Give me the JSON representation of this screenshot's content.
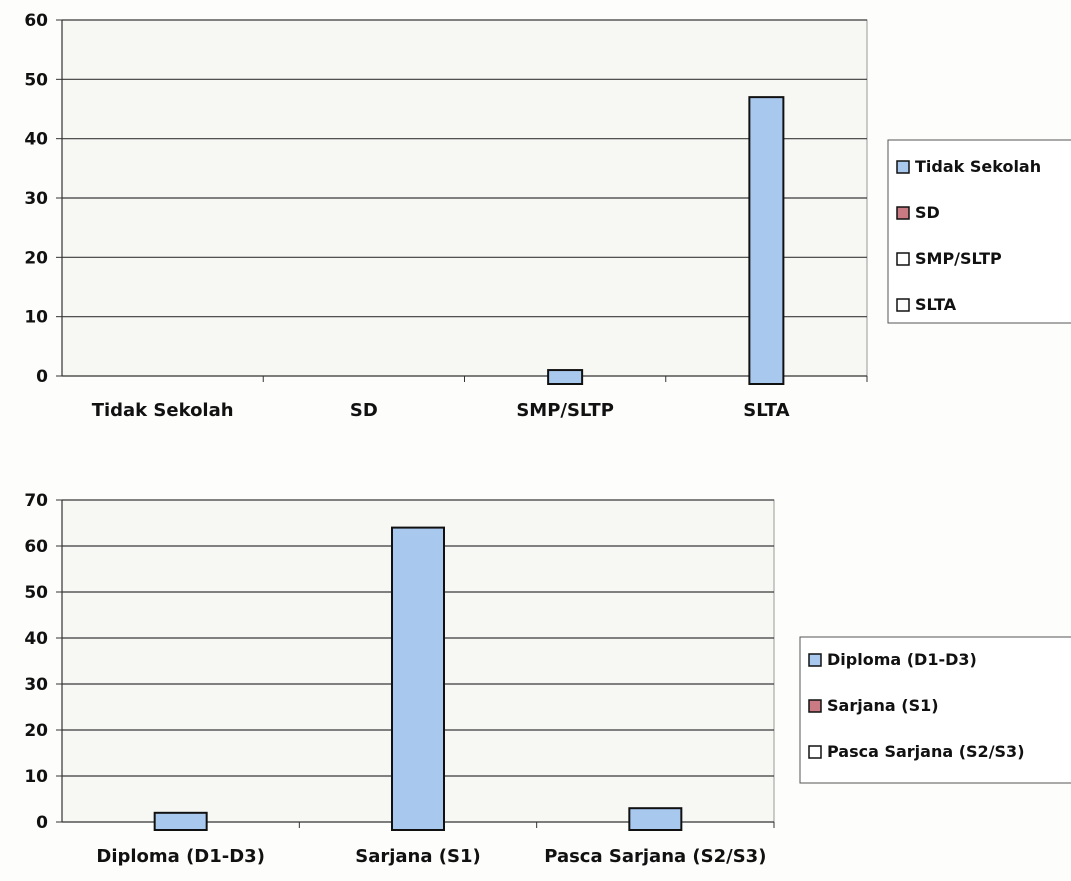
{
  "chart_data": [
    {
      "type": "bar",
      "categories": [
        "Tidak Sekolah",
        "SD",
        "SMP/SLTP",
        "SLTA"
      ],
      "values": [
        0,
        0,
        1,
        47
      ],
      "ylim": [
        0,
        60
      ],
      "yticks": [
        0,
        10,
        20,
        30,
        40,
        50,
        60
      ],
      "grid": true,
      "legend": {
        "placement": "right",
        "entries": [
          {
            "label": "Tidak Sekolah",
            "color": "#a9c8ee"
          },
          {
            "label": "SD",
            "color": "#c97a83"
          },
          {
            "label": "SMP/SLTP",
            "color": "#ffffff"
          },
          {
            "label": "SLTA",
            "color": "#ffffff"
          }
        ]
      },
      "bar_color": "#a9c8ee"
    },
    {
      "type": "bar",
      "categories": [
        "Diploma (D1-D3)",
        "Sarjana (S1)",
        "Pasca Sarjana (S2/S3)"
      ],
      "values": [
        2,
        64,
        3
      ],
      "ylim": [
        0,
        70
      ],
      "yticks": [
        0,
        10,
        20,
        30,
        40,
        50,
        60,
        70
      ],
      "grid": true,
      "legend": {
        "placement": "right",
        "entries": [
          {
            "label": "Diploma (D1-D3)",
            "color": "#a9c8ee"
          },
          {
            "label": "Sarjana (S1)",
            "color": "#c97a83"
          },
          {
            "label": "Pasca Sarjana (S2/S3)",
            "color": "#ffffff"
          }
        ]
      },
      "bar_color": "#a9c8ee"
    }
  ]
}
